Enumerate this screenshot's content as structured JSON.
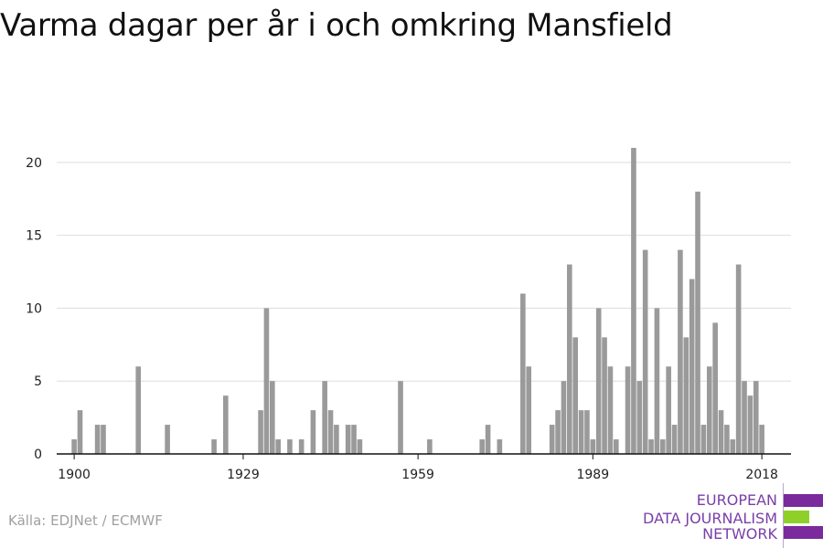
{
  "page": {
    "title": "Varma dagar per år i och omkring Mansfield"
  },
  "source": "Källa: EDJNet / ECMWF",
  "logo": {
    "lines": [
      "EUROPEAN",
      "DATA JOURNALISM",
      "NETWORK"
    ],
    "colors": [
      "#7a2a9c",
      "#8fcf2a",
      "#7a2a9c"
    ]
  },
  "chart_data": {
    "type": "bar",
    "title": "Varma dagar per år i och omkring Mansfield",
    "xlabel": "",
    "ylabel": "",
    "bar_color": "#9a9a9a",
    "grid": true,
    "xlim": [
      1897,
      2023
    ],
    "ylim": [
      0,
      23
    ],
    "x_ticks": [
      1900,
      1929,
      1959,
      1989,
      2018
    ],
    "y_ticks": [
      0,
      5,
      10,
      15,
      20
    ],
    "x": [
      1900,
      1901,
      1904,
      1905,
      1911,
      1916,
      1924,
      1926,
      1932,
      1933,
      1934,
      1935,
      1937,
      1939,
      1941,
      1943,
      1944,
      1945,
      1947,
      1948,
      1949,
      1956,
      1961,
      1970,
      1971,
      1973,
      1977,
      1978,
      1982,
      1983,
      1984,
      1985,
      1986,
      1987,
      1988,
      1989,
      1990,
      1991,
      1992,
      1993,
      1995,
      1996,
      1997,
      1998,
      1999,
      2000,
      2001,
      2002,
      2003,
      2004,
      2005,
      2006,
      2007,
      2008,
      2009,
      2010,
      2011,
      2012,
      2013,
      2014,
      2015,
      2016,
      2017,
      2018
    ],
    "values": [
      1,
      3,
      2,
      2,
      6,
      2,
      1,
      4,
      3,
      10,
      5,
      1,
      1,
      1,
      3,
      5,
      3,
      2,
      2,
      2,
      1,
      5,
      1,
      1,
      2,
      1,
      11,
      6,
      2,
      3,
      5,
      13,
      8,
      3,
      3,
      1,
      10,
      8,
      6,
      1,
      6,
      21,
      5,
      14,
      1,
      10,
      1,
      6,
      2,
      14,
      8,
      12,
      18,
      2,
      6,
      9,
      3,
      2,
      1,
      13,
      5,
      4,
      5,
      2
    ]
  }
}
